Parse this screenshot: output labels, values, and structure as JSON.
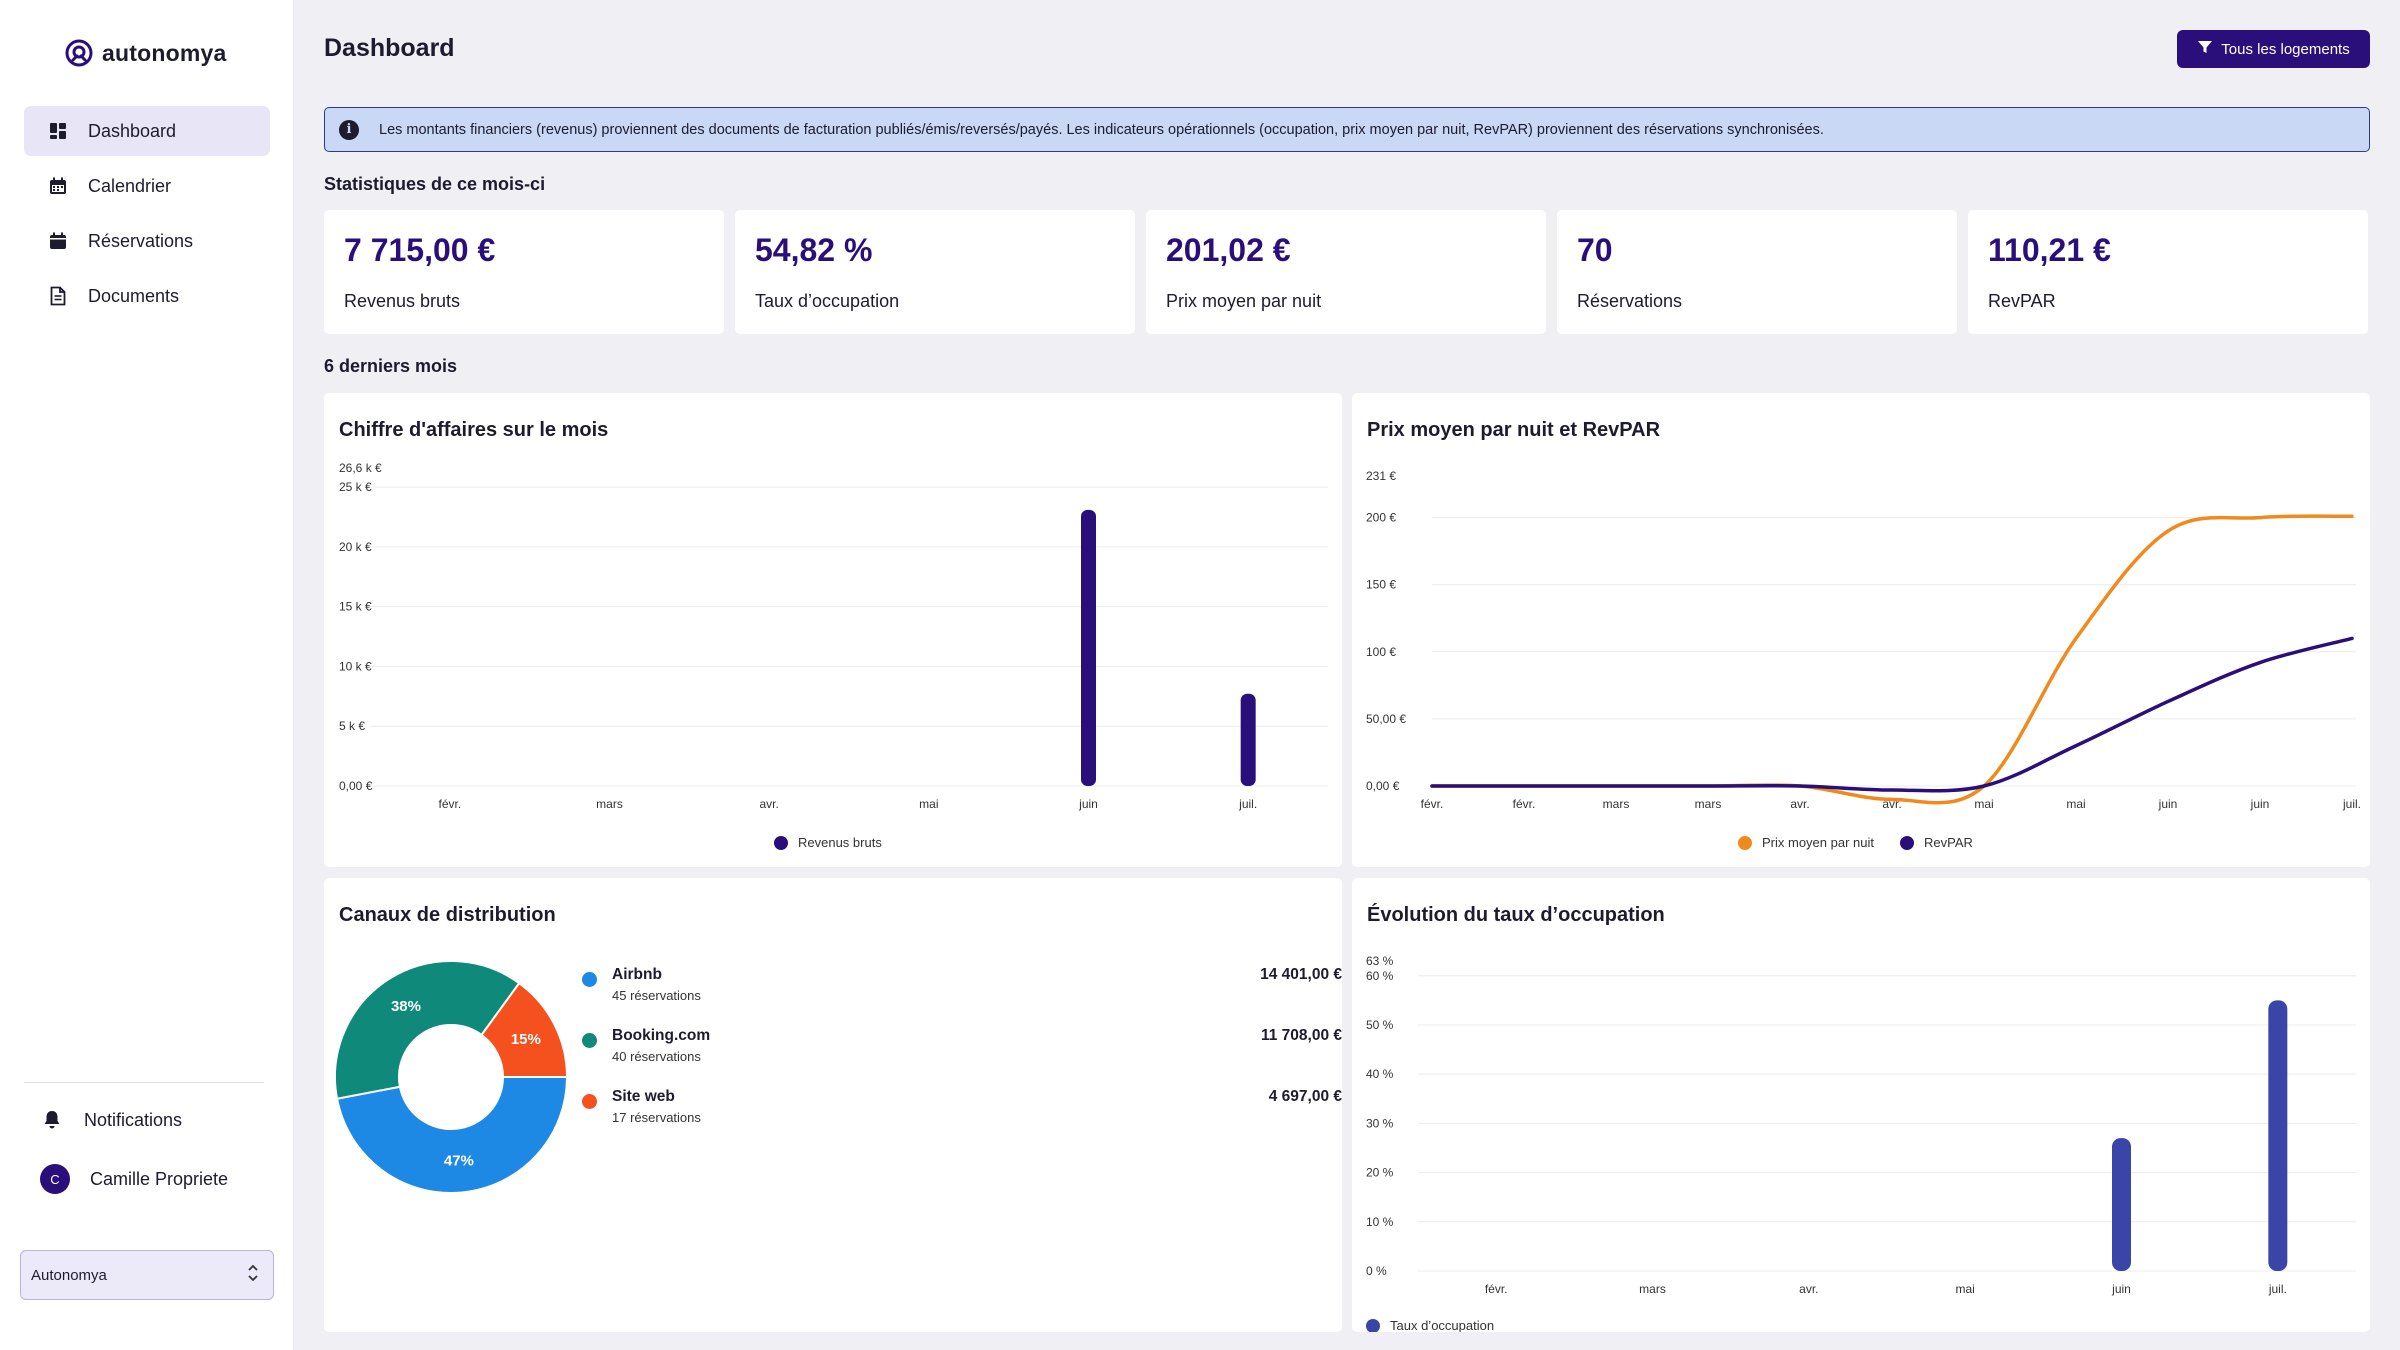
{
  "app": {
    "name": "autonomya"
  },
  "sidebar": {
    "items": [
      {
        "label": "Dashboard",
        "icon": "dashboard-icon",
        "active": true
      },
      {
        "label": "Calendrier",
        "icon": "calendar-icon",
        "active": false
      },
      {
        "label": "Réservations",
        "icon": "calendar-filled-icon",
        "active": false
      },
      {
        "label": "Documents",
        "icon": "document-icon",
        "active": false
      }
    ],
    "notifications_label": "Notifications",
    "user": {
      "initial": "C",
      "name": "Camille Propriete"
    },
    "org_select": {
      "value": "Autonomya"
    }
  },
  "header": {
    "title": "Dashboard",
    "filter_button": "Tous les logements"
  },
  "info_banner": {
    "text": "Les montants financiers (revenus) proviennent des documents de facturation publiés/émis/reversés/payés. Les indicateurs opérationnels (occupation, prix moyen par nuit, RevPAR) proviennent des réservations synchronisées."
  },
  "stats_section": {
    "title": "Statistiques de ce mois-ci",
    "cards": [
      {
        "value": "7 715,00 €",
        "label": "Revenus bruts"
      },
      {
        "value": "54,82 %",
        "label": "Taux d’occupation"
      },
      {
        "value": "201,02 €",
        "label": "Prix moyen par nuit"
      },
      {
        "value": "70",
        "label": "Réservations"
      },
      {
        "value": "110,21 €",
        "label": "RevPAR"
      }
    ]
  },
  "history_section": {
    "title": "6 derniers mois"
  },
  "colors": {
    "primary": "#2a0f7a",
    "orange": "#f08a1c",
    "airbnb": "#1e88e5",
    "booking": "#0f8a7a",
    "site": "#f4511e",
    "occupancy": "#3946a8"
  },
  "revenue_panel": {
    "title": "Chiffre d'affaires sur le mois"
  },
  "price_panel": {
    "title": "Prix moyen par nuit et RevPAR"
  },
  "channels_panel": {
    "title": "Canaux de distribution",
    "channels": [
      {
        "name": "Airbnb",
        "sub": "45 réservations",
        "amount": "14 401,00 €",
        "color": "#1e88e5"
      },
      {
        "name": "Booking.com",
        "sub": "40 réservations",
        "amount": "11 708,00 €",
        "color": "#0f8a7a"
      },
      {
        "name": "Site web",
        "sub": "17 réservations",
        "amount": "4 697,00 €",
        "color": "#f4511e"
      }
    ]
  },
  "occupancy_panel": {
    "title": "Évolution du taux d’occupation"
  },
  "chart_data": [
    {
      "type": "bar",
      "title": "Chiffre d'affaires sur le mois",
      "categories": [
        "févr.",
        "mars",
        "avr.",
        "mai",
        "juin",
        "juil."
      ],
      "series": [
        {
          "name": "Revenus bruts",
          "values": [
            0,
            0,
            0,
            0,
            23100,
            7715
          ]
        }
      ],
      "ylim": [
        0,
        26600
      ],
      "y_ticks": [
        "0,00 €",
        "5 k €",
        "10 k €",
        "15 k €",
        "20 k €",
        "25 k €",
        "26,6 k €"
      ],
      "y_tick_values": [
        0,
        5000,
        10000,
        15000,
        20000,
        25000,
        26600
      ],
      "legend": "bottom"
    },
    {
      "type": "line",
      "title": "Prix moyen par nuit et RevPAR",
      "x": [
        "févr.",
        "févr.",
        "mars",
        "mars",
        "avr.",
        "avr.",
        "mai",
        "mai",
        "juin",
        "juin",
        "juil."
      ],
      "series": [
        {
          "name": "Prix moyen par nuit",
          "values": [
            0,
            0,
            0,
            0,
            0,
            -10,
            0,
            110,
            190,
            200,
            201
          ]
        },
        {
          "name": "RevPAR",
          "values": [
            0,
            0,
            0,
            0,
            0,
            -3,
            0,
            30,
            63,
            92,
            110
          ]
        }
      ],
      "ylim": [
        -15,
        231
      ],
      "y_ticks": [
        "0,00 €",
        "50,00 €",
        "100 €",
        "150 €",
        "200 €",
        "231 €"
      ],
      "y_tick_values": [
        0,
        50,
        100,
        150,
        200,
        231
      ],
      "legend": "bottom"
    },
    {
      "type": "pie",
      "title": "Canaux de distribution",
      "categories": [
        "Airbnb",
        "Booking.com",
        "Site web"
      ],
      "values": [
        47,
        38,
        15
      ],
      "labels": [
        "47%",
        "38%",
        "15%"
      ]
    },
    {
      "type": "bar",
      "title": "Évolution du taux d’occupation",
      "categories": [
        "févr.",
        "mars",
        "avr.",
        "mai",
        "juin",
        "juil."
      ],
      "series": [
        {
          "name": "Taux d’occupation",
          "values": [
            0,
            0,
            0,
            0,
            27,
            55
          ]
        }
      ],
      "ylim": [
        0,
        63
      ],
      "y_ticks": [
        "0 %",
        "10 %",
        "20 %",
        "30 %",
        "40 %",
        "50 %",
        "60 %",
        "63 %"
      ],
      "y_tick_values": [
        0,
        10,
        20,
        30,
        40,
        50,
        60,
        63
      ],
      "legend": "bottom"
    }
  ]
}
